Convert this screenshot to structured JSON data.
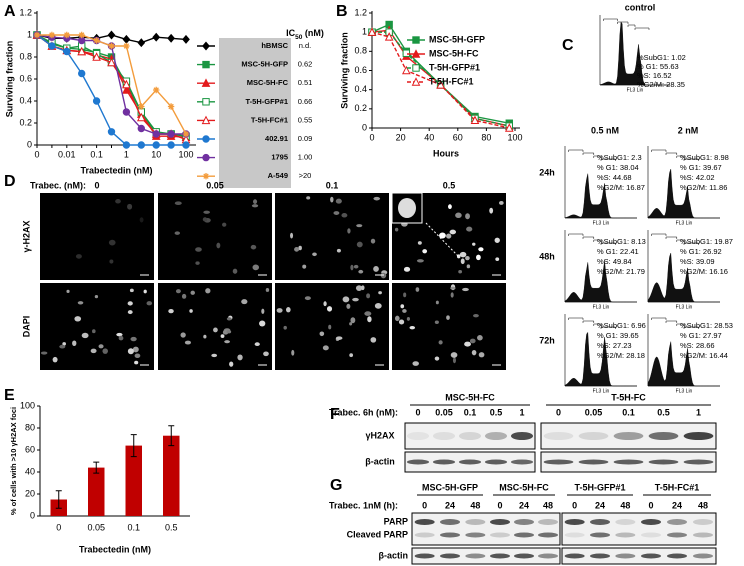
{
  "panel_labels": [
    "A",
    "B",
    "C",
    "D",
    "E",
    "F",
    "G"
  ],
  "chart_data": [
    {
      "type": "line",
      "ylabel": "Surviving fraction",
      "xlabel": "Trabectedin (nM)",
      "categories": [
        "0",
        null,
        "0.01",
        null,
        "0.1",
        null,
        "1",
        null,
        "10",
        null,
        "100"
      ],
      "ylim": [
        0,
        1.2
      ],
      "yticks": [
        0,
        0.2,
        0.4,
        0.6,
        0.8,
        1,
        1.2
      ],
      "legend_header": [
        "IC",
        "50",
        " (nM)"
      ],
      "series": [
        {
          "name": "hBMSC",
          "ic50": "n.d.",
          "color": "#000000",
          "marker": "diamond",
          "values": [
            1,
            0.97,
            0.97,
            0.98,
            0.97,
            1.0,
            0.96,
            0.93,
            0.98,
            0.97,
            0.96
          ]
        },
        {
          "name": "MSC-5H-GFP",
          "ic50": "0.62",
          "color": "#1a9641",
          "marker": "square",
          "values": [
            1,
            0.92,
            0.88,
            0.87,
            0.84,
            0.8,
            0.55,
            0.3,
            0.1,
            0.1,
            0.08
          ]
        },
        {
          "name": "MSC-5H-FC",
          "ic50": "0.51",
          "color": "#e31a1c",
          "marker": "triangle",
          "values": [
            1,
            0.9,
            0.86,
            0.85,
            0.82,
            0.78,
            0.5,
            0.28,
            0.08,
            0.08,
            0.07
          ]
        },
        {
          "name": "T-5H-GFP#1",
          "ic50": "0.66",
          "color": "#1a9641",
          "marker": "square",
          "open": true,
          "values": [
            1,
            0.93,
            0.88,
            0.9,
            0.83,
            0.75,
            0.58,
            0.3,
            0.12,
            0.1,
            0.08
          ]
        },
        {
          "name": "T-5H-FC#1",
          "ic50": "0.55",
          "color": "#e31a1c",
          "marker": "triangle",
          "open": true,
          "values": [
            1,
            0.9,
            0.86,
            0.85,
            0.8,
            0.75,
            0.55,
            0.25,
            0.1,
            0.1,
            0.05
          ]
        },
        {
          "name": "402.91",
          "ic50": "0.09",
          "color": "#1f78d0",
          "marker": "circle",
          "values": [
            1,
            0.9,
            0.85,
            0.65,
            0.4,
            0.12,
            0,
            0,
            0,
            0,
            0
          ]
        },
        {
          "name": "1795",
          "ic50": "1.00",
          "color": "#7030a0",
          "marker": "circle",
          "values": [
            1,
            0.98,
            0.97,
            0.95,
            0.95,
            0.9,
            0.3,
            0.15,
            0.1,
            0.1,
            0.1
          ]
        },
        {
          "name": "A-549",
          "ic50": ">20",
          "color": "#f39c3c",
          "marker": "star",
          "values": [
            1,
            1,
            1,
            1,
            0.95,
            0.9,
            0.9,
            0.35,
            0.5,
            0.35,
            0.1
          ]
        }
      ]
    },
    {
      "type": "line",
      "ylabel": "Surviving fraction",
      "xlabel": "Hours",
      "x": [
        0,
        12,
        24,
        48,
        72,
        96
      ],
      "xlim": [
        0,
        100
      ],
      "xticks": [
        0,
        20,
        40,
        60,
        80,
        100
      ],
      "ylim": [
        0,
        1.2
      ],
      "yticks": [
        0,
        0.2,
        0.4,
        0.6,
        0.8,
        1,
        1.2
      ],
      "series": [
        {
          "name": "MSC-5H-GFP",
          "color": "#1a9641",
          "marker": "square",
          "values": [
            1,
            1.08,
            0.8,
            0.45,
            0.12,
            0.05
          ]
        },
        {
          "name": "MSC-5H-FC",
          "color": "#e31a1c",
          "marker": "triangle",
          "values": [
            1,
            1.02,
            0.75,
            0.45,
            0.1,
            0.02
          ]
        },
        {
          "name": "T-5H-GFP#1",
          "color": "#1a9641",
          "marker": "square",
          "open": true,
          "dashed": true,
          "values": [
            1,
            1.0,
            0.78,
            0.45,
            0.1,
            0.02
          ]
        },
        {
          "name": "T-5H-FC#1",
          "color": "#e31a1c",
          "marker": "triangle",
          "open": true,
          "dashed": true,
          "values": [
            1,
            0.95,
            0.6,
            0.45,
            0.08,
            0.0
          ]
        }
      ]
    },
    {
      "type": "bar",
      "ylabel": "% of cells with >10 γH2AX foci",
      "xlabel": "Trabectedin (nM)",
      "categories": [
        "0",
        "0.05",
        "0.1",
        "0.5"
      ],
      "values": [
        15,
        44,
        64,
        73
      ],
      "errors": [
        8,
        5,
        10,
        9
      ],
      "color": "#c00000",
      "ylim": [
        0,
        100
      ],
      "yticks": [
        0,
        20,
        40,
        60,
        80,
        100
      ]
    }
  ],
  "flow": {
    "axis_label": "FL3 Lin",
    "control": {
      "label": "control",
      "stats": [
        "%SubG1: 1.02",
        "% G1: 55.63",
        "%S: 16.52",
        "%G2/M: 28.35"
      ]
    },
    "columns": [
      "0.5 nM",
      "2 nM"
    ],
    "rows": [
      {
        "label": "24h",
        "stats": [
          [
            "%SubG1: 2.3",
            "% G1: 38.04",
            "%S: 44.68",
            "%G2/M: 16.87"
          ],
          [
            "%SubG1: 8.98",
            "% G1: 39.67",
            "%S: 42.02",
            "%G2/M: 11.86"
          ]
        ]
      },
      {
        "label": "48h",
        "stats": [
          [
            "%SubG1: 8.13",
            "% G1: 22.41",
            "%S: 49.84",
            "%G2/M: 21.79"
          ],
          [
            "%SubG1: 19.87",
            "% G1: 26.92",
            "%S: 39.09",
            "%G2/M: 16.16"
          ]
        ]
      },
      {
        "label": "72h",
        "stats": [
          [
            "%SubG1: 6.96",
            "% G1: 39.65",
            "%S: 27.23",
            "%G2/M: 28.18"
          ],
          [
            "%SubG1: 28.53",
            "% G1: 27.97",
            "%S: 28.66",
            "%G2/M: 16.44"
          ]
        ]
      }
    ]
  },
  "microscopy": {
    "dose_label": "Trabec. (nM):",
    "doses": [
      "0",
      "0.05",
      "0.1",
      "0.5"
    ],
    "rows": [
      "γ-H2AX",
      "DAPI"
    ]
  },
  "blot_f": {
    "treatment": "Trabec. 6h (nM):",
    "groups": [
      {
        "name": "MSC-5H-FC",
        "lanes": [
          "0",
          "0.05",
          "0.1",
          "0.5",
          "1"
        ]
      },
      {
        "name": "T-5H-FC",
        "lanes": [
          "0",
          "0.05",
          "0.1",
          "0.5",
          "1"
        ]
      }
    ],
    "rows": [
      "γH2AX",
      "β-actin"
    ]
  },
  "blot_g": {
    "treatment": "Trabec. 1nM (h):",
    "groups": [
      {
        "name": "MSC-5H-GFP",
        "lanes": [
          "0",
          "24",
          "48"
        ]
      },
      {
        "name": "MSC-5H-FC",
        "lanes": [
          "0",
          "24",
          "48"
        ]
      },
      {
        "name": "T-5H-GFP#1",
        "lanes": [
          "0",
          "24",
          "48"
        ]
      },
      {
        "name": "T-5H-FC#1",
        "lanes": [
          "0",
          "24",
          "48"
        ]
      }
    ],
    "rows": [
      "PARP",
      "Cleaved PARP",
      "β-actin"
    ]
  }
}
